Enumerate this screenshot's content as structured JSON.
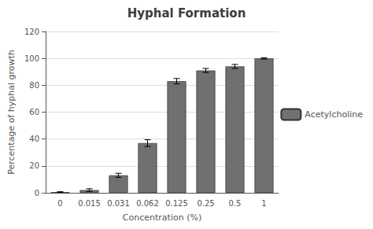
{
  "chart_data": {
    "type": "bar",
    "title": "Hyphal Formation",
    "xlabel": "Concentration (%)",
    "ylabel": "Percentage of hyphal growth",
    "categories": [
      "0",
      "0.015",
      "0.031",
      "0.062",
      "0.125",
      "0.25",
      "0.5",
      "1"
    ],
    "series": [
      {
        "name": "Acetylcholine",
        "color": "#707070",
        "values": [
          0.5,
          2.0,
          13.0,
          37.0,
          83.0,
          91.0,
          94.0,
          100.0
        ],
        "errors": [
          0.3,
          1.0,
          1.5,
          2.5,
          2.0,
          1.5,
          1.5,
          0.5
        ]
      }
    ],
    "ylim": [
      0,
      120
    ],
    "yticks": [
      0,
      20,
      40,
      60,
      80,
      100,
      120
    ],
    "grid": true,
    "legend": "right"
  }
}
